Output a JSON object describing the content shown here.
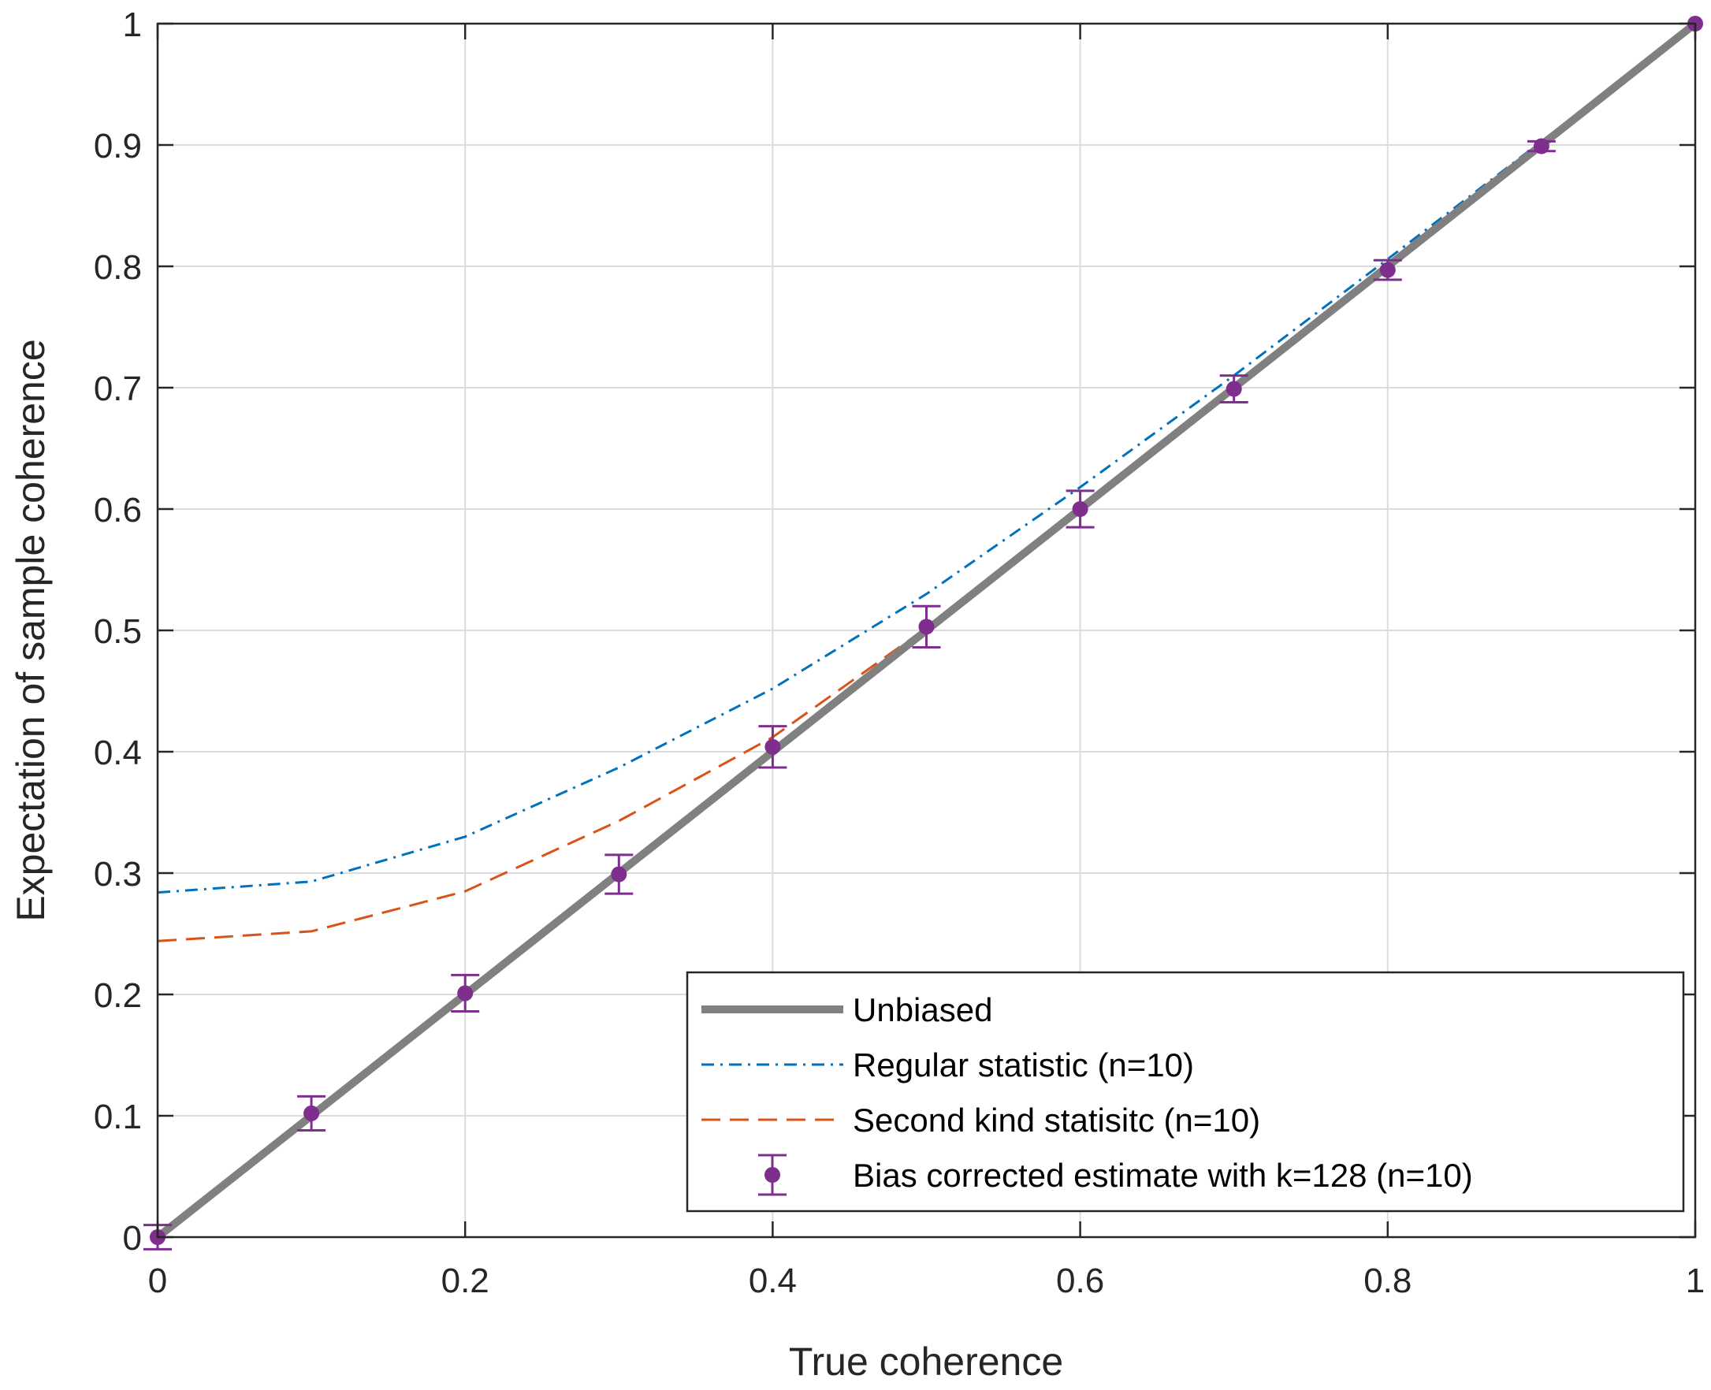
{
  "chart_data": {
    "type": "line",
    "title": "",
    "xlabel": "True coherence",
    "ylabel": "Expectation of sample coherence",
    "xlim": [
      0,
      1
    ],
    "ylim": [
      0,
      1
    ],
    "grid": true,
    "legend_position": "bottom-right",
    "xticks": [
      0,
      0.2,
      0.4,
      0.6,
      0.8,
      1
    ],
    "xtick_labels": [
      "0",
      "0.2",
      "0.4",
      "0.6",
      "0.8",
      "1"
    ],
    "yticks": [
      0,
      0.1,
      0.2,
      0.3,
      0.4,
      0.5,
      0.6,
      0.7,
      0.8,
      0.9,
      1
    ],
    "ytick_labels": [
      "0",
      "0.1",
      "0.2",
      "0.3",
      "0.4",
      "0.5",
      "0.6",
      "0.7",
      "0.8",
      "0.9",
      "1"
    ],
    "x": [
      0,
      0.1,
      0.2,
      0.3,
      0.4,
      0.5,
      0.6,
      0.7,
      0.8,
      0.9,
      1
    ],
    "series": [
      {
        "name": "Unbiased",
        "style": "solid-thick",
        "color": "#808080",
        "values": [
          0,
          0.1,
          0.2,
          0.3,
          0.4,
          0.5,
          0.6,
          0.7,
          0.8,
          0.9,
          1
        ]
      },
      {
        "name": "Regular statistic (n=10)",
        "style": "dash-dot",
        "color": "#0072BD",
        "values": [
          0.284,
          0.293,
          0.33,
          0.387,
          0.452,
          0.53,
          0.618,
          0.71,
          0.806,
          0.903,
          1
        ]
      },
      {
        "name": "Second kind statisitc (n=10)",
        "style": "dashed",
        "color": "#D95319",
        "values": [
          0.244,
          0.252,
          0.285,
          0.343,
          0.412,
          0.502,
          0.602,
          0.701,
          0.801,
          0.901,
          1
        ]
      },
      {
        "name": "Bias corrected estimate with k=128 (n=10)",
        "style": "errorbar",
        "color": "#7E2F8E",
        "values": [
          0.0,
          0.102,
          0.201,
          0.299,
          0.404,
          0.503,
          0.6,
          0.699,
          0.797,
          0.899,
          1.0
        ],
        "errors": [
          0.01,
          0.014,
          0.015,
          0.016,
          0.017,
          0.017,
          0.015,
          0.011,
          0.008,
          0.004,
          0.0
        ]
      }
    ]
  }
}
